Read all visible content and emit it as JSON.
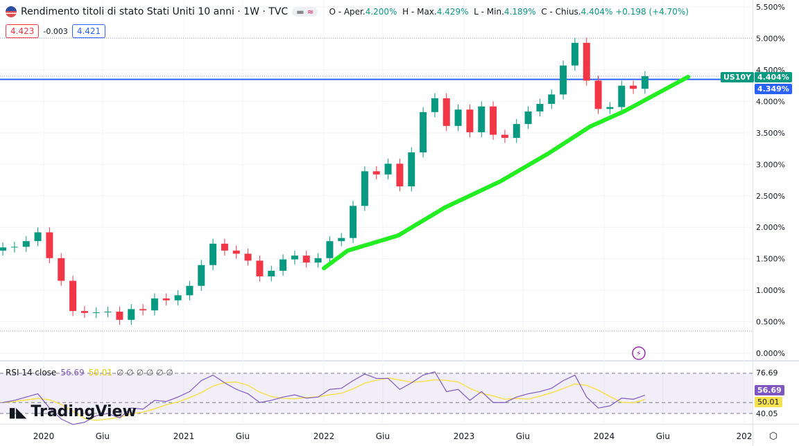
{
  "header": {
    "title": "Rendimento titoli di stato Stati Uniti 10 anni · 1W · TVC",
    "pill_icon": "≈",
    "o_label": "O - Aper.",
    "o": "4.200%",
    "h_label": "H - Max.",
    "h": "4.429%",
    "l_label": "L - Min.",
    "l": "4.189%",
    "c_label": "C - Chius.",
    "c": "4.404%",
    "chg": "+0.198 (+4.70%)",
    "bid": "4.423",
    "spread": "-0.003",
    "ask": "4.421"
  },
  "tags": {
    "symbol": "US10Y",
    "last": "4.404%",
    "line": "4.349%"
  },
  "rsi": {
    "label": "RSI 14 close",
    "value": "56.69",
    "ma": "50.01",
    "extra": "∅ ∅ ∅ ∅ ∅ ∅",
    "axis": [
      "76.69",
      "40.05"
    ]
  },
  "logo": "TradingView",
  "colors": {
    "up": "#089981",
    "down": "#f23645",
    "trend": "#22ee22",
    "hline": "#2962ff",
    "rsi": "#7e57c2",
    "rsi_ma": "#f5e050"
  },
  "chart_data": {
    "type": "candlestick",
    "title": "Rendimento titoli di stato Stati Uniti 10 anni",
    "interval": "1W (approximated monthly)",
    "start": "2019-09",
    "closes": [
      1.68,
      1.69,
      1.78,
      1.92,
      1.51,
      1.15,
      0.67,
      0.64,
      0.65,
      0.66,
      0.53,
      0.7,
      0.68,
      0.87,
      0.84,
      0.92,
      1.07,
      1.4,
      1.74,
      1.63,
      1.58,
      1.47,
      1.22,
      1.31,
      1.49,
      1.55,
      1.44,
      1.51,
      1.78,
      1.83,
      2.34,
      2.89,
      2.84,
      3.01,
      2.65,
      3.19,
      3.83,
      4.05,
      3.61,
      3.87,
      3.51,
      3.92,
      3.47,
      3.42,
      3.64,
      3.84,
      3.96,
      4.11,
      4.57,
      4.93,
      4.33,
      3.88,
      3.91,
      4.25,
      4.2,
      4.4
    ],
    "rsi_values": [
      50,
      52,
      55,
      58,
      45,
      35,
      30,
      32,
      38,
      40,
      36,
      45,
      44,
      52,
      51,
      55,
      60,
      70,
      75,
      68,
      62,
      58,
      50,
      52,
      55,
      57,
      54,
      55,
      62,
      63,
      70,
      76,
      72,
      72,
      62,
      68,
      75,
      78,
      60,
      62,
      52,
      60,
      50,
      50,
      55,
      58,
      60,
      63,
      70,
      75,
      55,
      45,
      47,
      54,
      53,
      56.69
    ],
    "yticks": [
      "5.500%",
      "5.000%",
      "4.500%",
      "4.000%",
      "3.500%",
      "3.000%",
      "2.500%",
      "2.000%",
      "1.500%",
      "1.000%",
      "0.500%",
      "0.000%"
    ],
    "ylim": [
      0,
      5.5
    ],
    "xticks": [
      {
        "t": 2020,
        "label": "2020"
      },
      {
        "t": 2020.42,
        "label": "Giu"
      },
      {
        "t": 2021,
        "label": "2021"
      },
      {
        "t": 2021.42,
        "label": "Giu"
      },
      {
        "t": 2022,
        "label": "2022"
      },
      {
        "t": 2022.42,
        "label": "Giu"
      },
      {
        "t": 2023,
        "label": "2023"
      },
      {
        "t": 2023.42,
        "label": "Giu"
      },
      {
        "t": 2024,
        "label": "2024"
      },
      {
        "t": 2024.42,
        "label": "Giu"
      },
      {
        "t": 2025,
        "label": "202"
      }
    ],
    "hline": 4.349,
    "trendline": [
      [
        2022.0,
        1.35
      ],
      [
        2022.17,
        1.63
      ],
      [
        2022.53,
        1.87
      ],
      [
        2022.86,
        2.31
      ],
      [
        2023.26,
        2.73
      ],
      [
        2023.6,
        3.17
      ],
      [
        2023.9,
        3.6
      ],
      [
        2024.15,
        3.85
      ],
      [
        2024.6,
        4.39
      ]
    ]
  }
}
